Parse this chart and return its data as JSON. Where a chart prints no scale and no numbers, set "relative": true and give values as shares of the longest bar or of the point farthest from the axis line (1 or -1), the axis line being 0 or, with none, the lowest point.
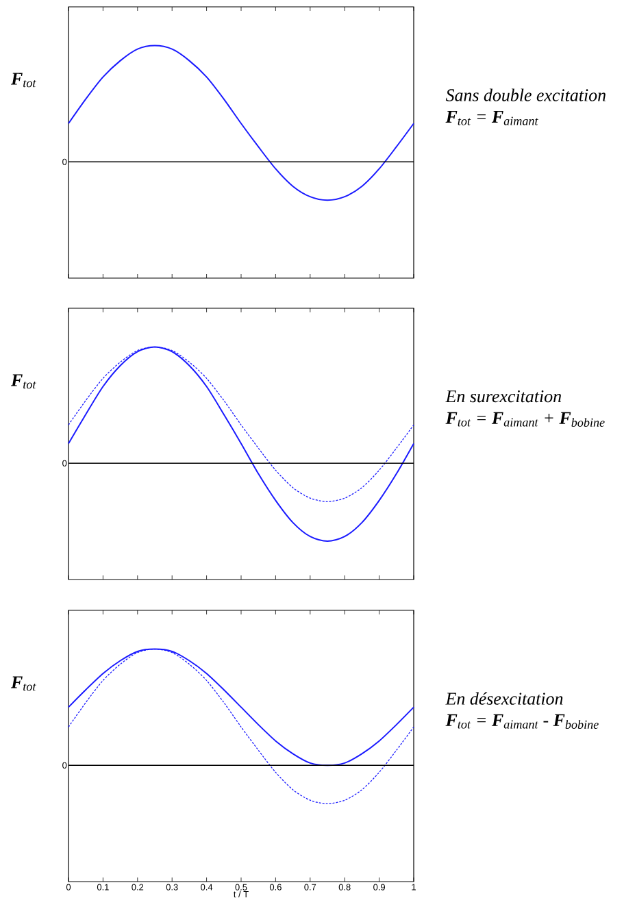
{
  "chart_data": [
    {
      "type": "line",
      "relative": true,
      "annotations": [
        "Sans double excitation",
        "**F**$_{tot}$ = **F**$_{aimant}$"
      ],
      "ylabel": "**F**$_{tot}$",
      "xlim": [
        0,
        1
      ],
      "xticks": [
        0,
        0.1,
        0.2,
        0.3,
        0.4,
        0.5,
        0.6,
        0.7,
        0.8,
        0.9,
        1
      ],
      "tick_labels": false,
      "ref_lines": [
        {
          "axis": "y",
          "value": 0,
          "label": "0",
          "color": "#000000"
        }
      ],
      "x": [
        0,
        0.05,
        0.1,
        0.15,
        0.2,
        0.25,
        0.3,
        0.35,
        0.4,
        0.45,
        0.5,
        0.55,
        0.6,
        0.65,
        0.7,
        0.75,
        0.8,
        0.85,
        0.9,
        0.95,
        1
      ],
      "series": [
        {
          "color": "#1a1aff",
          "line_style": "solid",
          "values": [
            0.33,
            0.54,
            0.73,
            0.87,
            0.97,
            1,
            0.97,
            0.87,
            0.73,
            0.54,
            0.33,
            0.13,
            -0.06,
            -0.21,
            -0.3,
            -0.33,
            -0.3,
            -0.21,
            -0.06,
            0.13,
            0.33
          ]
        }
      ]
    },
    {
      "type": "line",
      "relative": true,
      "annotations": [
        "En surexcitation",
        "**F**$_{tot}$ = **F**$_{aimant}$ + **F**$_{bobine}$"
      ],
      "ylabel": "**F**$_{tot}$",
      "xlim": [
        0,
        1
      ],
      "xticks": [
        0,
        0.1,
        0.2,
        0.3,
        0.4,
        0.5,
        0.6,
        0.7,
        0.8,
        0.9,
        1
      ],
      "tick_labels": false,
      "ref_lines": [
        {
          "axis": "y",
          "value": 0,
          "label": "0",
          "color": "#000000"
        }
      ],
      "x": [
        0,
        0.05,
        0.1,
        0.15,
        0.2,
        0.25,
        0.3,
        0.35,
        0.4,
        0.45,
        0.5,
        0.55,
        0.6,
        0.65,
        0.7,
        0.75,
        0.8,
        0.85,
        0.9,
        0.95,
        1
      ],
      "series": [
        {
          "color": "#1a1aff",
          "line_style": "dashed",
          "values": [
            0.33,
            0.54,
            0.73,
            0.87,
            0.97,
            1,
            0.97,
            0.87,
            0.73,
            0.54,
            0.33,
            0.13,
            -0.06,
            -0.21,
            -0.3,
            -0.33,
            -0.3,
            -0.21,
            -0.06,
            0.13,
            0.33
          ]
        },
        {
          "color": "#1a1aff",
          "line_style": "solid",
          "values": [
            0.17,
            0.42,
            0.66,
            0.84,
            0.96,
            1,
            0.96,
            0.84,
            0.66,
            0.42,
            0.17,
            -0.09,
            -0.32,
            -0.51,
            -0.63,
            -0.67,
            -0.63,
            -0.51,
            -0.32,
            -0.09,
            0.17
          ]
        }
      ]
    },
    {
      "type": "line",
      "relative": true,
      "annotations": [
        "En désexcitation",
        "**F**$_{tot}$ = **F**$_{aimant}$ - **F**$_{bobine}$"
      ],
      "ylabel": "**F**$_{tot}$",
      "xlabel": "t / T",
      "xlim": [
        0,
        1
      ],
      "xticks": [
        0,
        0.1,
        0.2,
        0.3,
        0.4,
        0.5,
        0.6,
        0.7,
        0.8,
        0.9,
        1
      ],
      "tick_labels": "x",
      "ref_lines": [
        {
          "axis": "y",
          "value": 0,
          "label": "0",
          "color": "#000000"
        }
      ],
      "x": [
        0,
        0.05,
        0.1,
        0.15,
        0.2,
        0.25,
        0.3,
        0.35,
        0.4,
        0.45,
        0.5,
        0.55,
        0.6,
        0.65,
        0.7,
        0.75,
        0.8,
        0.85,
        0.9,
        0.95,
        1
      ],
      "series": [
        {
          "color": "#1a1aff",
          "line_style": "dashed",
          "values": [
            0.33,
            0.54,
            0.73,
            0.87,
            0.97,
            1,
            0.97,
            0.87,
            0.73,
            0.54,
            0.33,
            0.13,
            -0.06,
            -0.21,
            -0.3,
            -0.33,
            -0.3,
            -0.21,
            -0.06,
            0.13,
            0.33
          ]
        },
        {
          "color": "#1a1aff",
          "line_style": "solid",
          "values": [
            0.5,
            0.65,
            0.79,
            0.9,
            0.98,
            1,
            0.98,
            0.9,
            0.79,
            0.65,
            0.5,
            0.35,
            0.21,
            0.1,
            0.02,
            0,
            0.02,
            0.1,
            0.21,
            0.35,
            0.5
          ]
        }
      ]
    }
  ]
}
